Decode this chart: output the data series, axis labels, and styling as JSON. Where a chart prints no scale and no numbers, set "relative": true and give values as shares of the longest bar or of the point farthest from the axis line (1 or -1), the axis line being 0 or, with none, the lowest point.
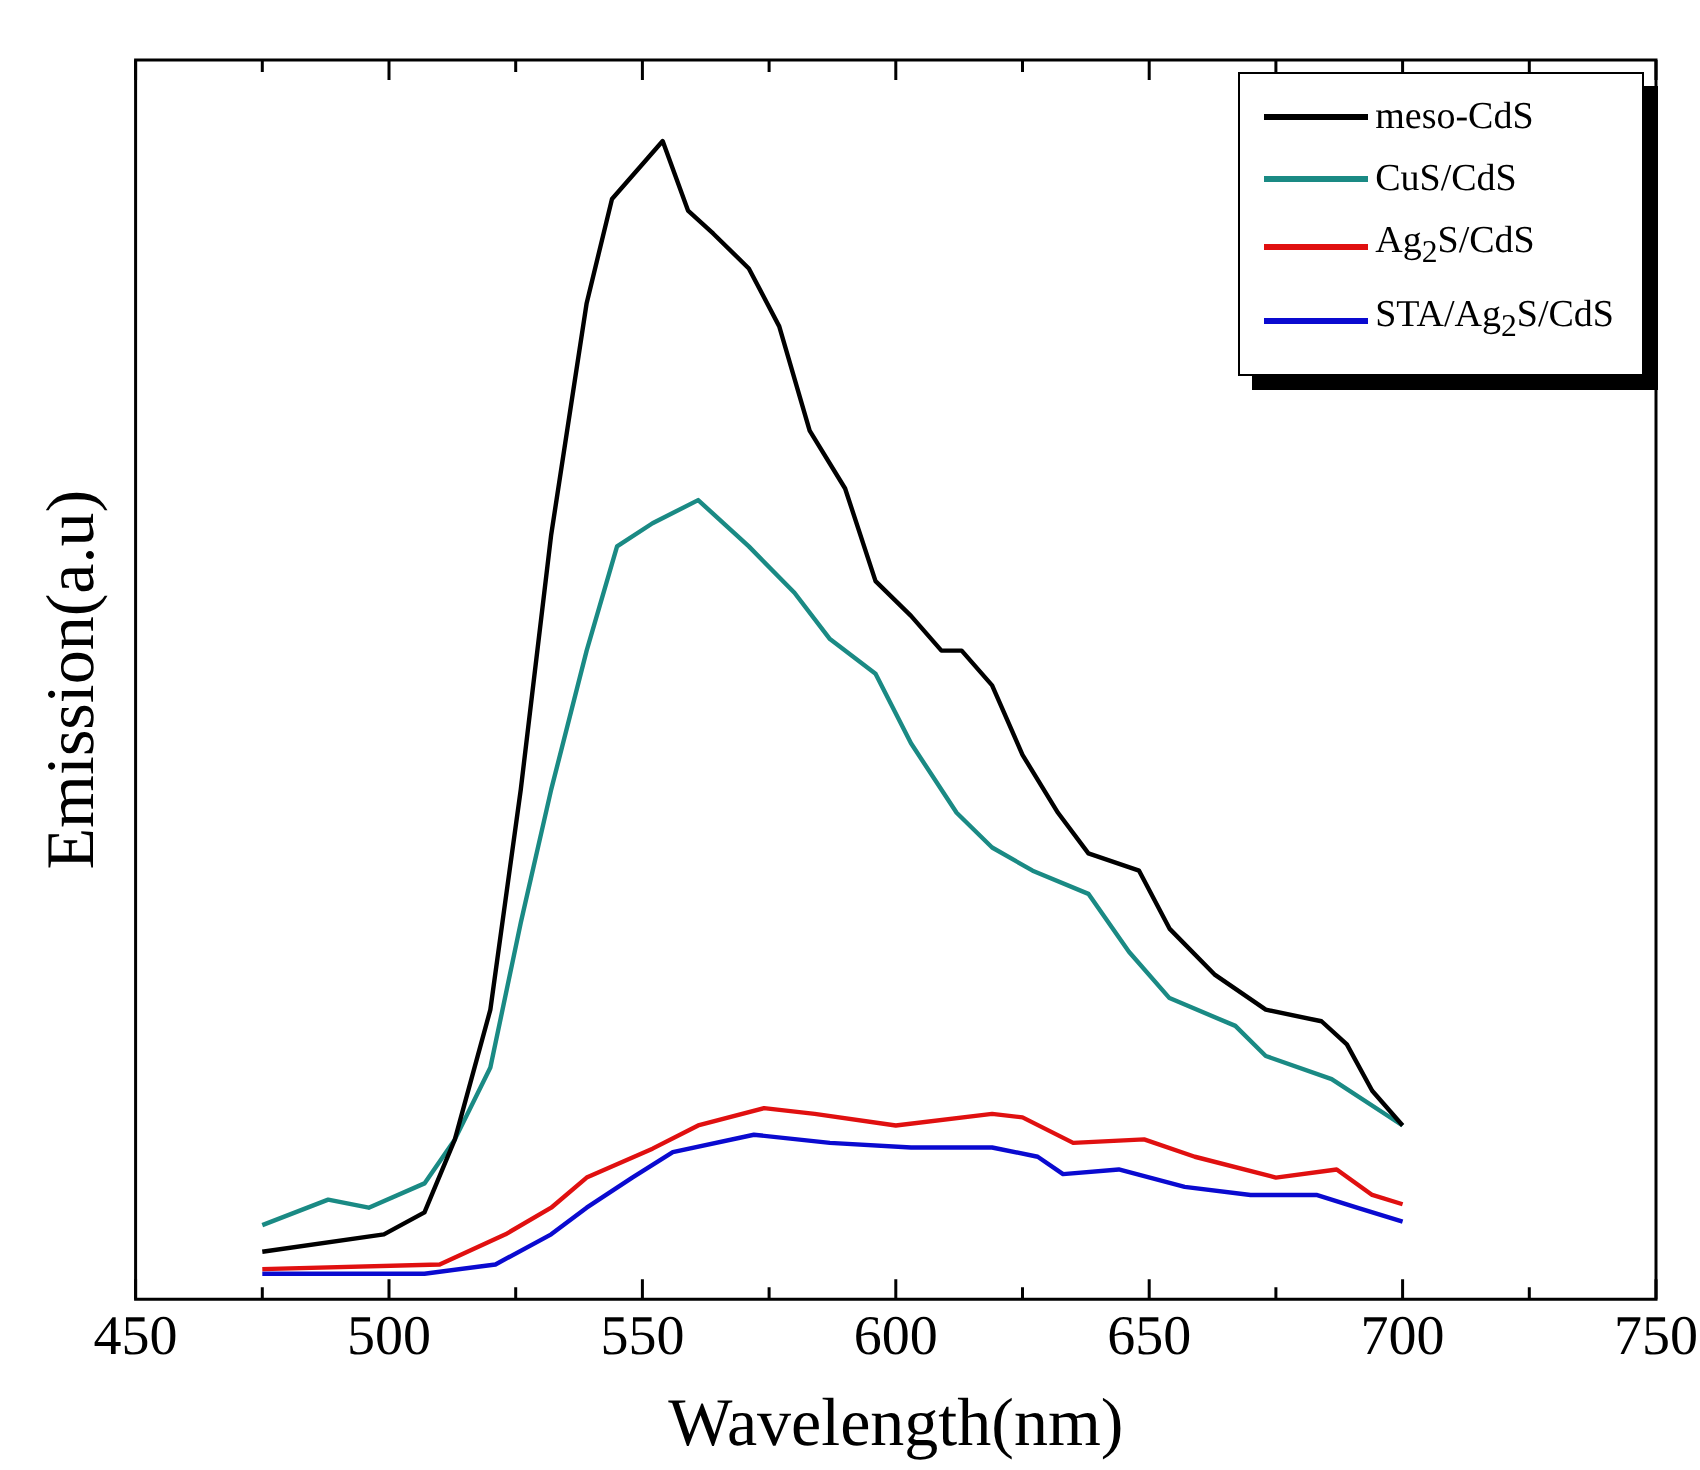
{
  "chart_data": {
    "type": "line",
    "xlabel": "Wavelength(nm)",
    "ylabel": "Emission(a.u)",
    "relative": true,
    "xlim": [
      450,
      750
    ],
    "xticks": [
      450,
      {
        "value": 475,
        "label": null
      },
      500,
      {
        "value": 525,
        "label": null
      },
      550,
      {
        "value": 575,
        "label": null
      },
      600,
      {
        "value": 625,
        "label": null
      },
      650,
      {
        "value": 675,
        "label": null
      },
      700,
      {
        "value": 725,
        "label": null
      },
      750
    ],
    "legend": "top right",
    "marker": "none",
    "line_style": "solid",
    "grid": false,
    "series": [
      {
        "name": "meso-CdS",
        "color": "#000000",
        "x": [
          475,
          499,
          507,
          513,
          520,
          526,
          532,
          539,
          544,
          550,
          554,
          559,
          564,
          571,
          577,
          583,
          590,
          596,
          603,
          609,
          613,
          619,
          625,
          632,
          638,
          648,
          654,
          663,
          673,
          684,
          689,
          694,
          700
        ],
        "values": [
          0.041,
          0.056,
          0.075,
          0.138,
          0.25,
          0.44,
          0.66,
          0.86,
          0.95,
          0.98,
          1.0,
          0.94,
          0.92,
          0.89,
          0.84,
          0.75,
          0.7,
          0.62,
          0.59,
          0.56,
          0.56,
          0.53,
          0.47,
          0.42,
          0.385,
          0.37,
          0.32,
          0.28,
          0.25,
          0.24,
          0.22,
          0.18,
          0.15
        ]
      },
      {
        "name": "CuS/CdS",
        "color": "#1a8a84",
        "x": [
          475,
          488,
          496,
          507,
          513,
          520,
          526,
          532,
          539,
          545,
          552,
          561,
          571,
          580,
          587,
          596,
          603,
          612,
          619,
          627,
          638,
          646,
          654,
          667,
          673,
          686,
          700
        ],
        "values": [
          0.064,
          0.086,
          0.079,
          0.1,
          0.138,
          0.2,
          0.325,
          0.44,
          0.56,
          0.65,
          0.67,
          0.69,
          0.65,
          0.61,
          0.57,
          0.54,
          0.48,
          0.42,
          0.39,
          0.37,
          0.35,
          0.3,
          0.26,
          0.236,
          0.21,
          0.19,
          0.15
        ]
      },
      {
        "name": "Ag$_{2}$S/CdS",
        "color": "#e01010",
        "x": [
          475,
          510,
          523,
          532,
          539,
          552,
          561,
          574,
          584,
          600,
          619,
          625,
          635,
          649,
          659,
          675,
          687,
          694,
          700
        ],
        "values": [
          0.026,
          0.03,
          0.056,
          0.079,
          0.105,
          0.13,
          0.15,
          0.165,
          0.16,
          0.15,
          0.16,
          0.157,
          0.135,
          0.138,
          0.123,
          0.105,
          0.112,
          0.09,
          0.082
        ]
      },
      {
        "name": "STA/Ag$_{2}$S/CdS",
        "color": "#0a0ad0",
        "x": [
          475,
          507,
          521,
          532,
          539,
          548,
          556,
          572,
          587,
          603,
          619,
          628,
          633,
          644,
          657,
          670,
          683,
          691,
          700
        ],
        "values": [
          0.022,
          0.022,
          0.03,
          0.056,
          0.079,
          0.105,
          0.127,
          0.142,
          0.135,
          0.131,
          0.131,
          0.123,
          0.108,
          0.112,
          0.097,
          0.09,
          0.09,
          0.079,
          0.067
        ]
      }
    ]
  }
}
